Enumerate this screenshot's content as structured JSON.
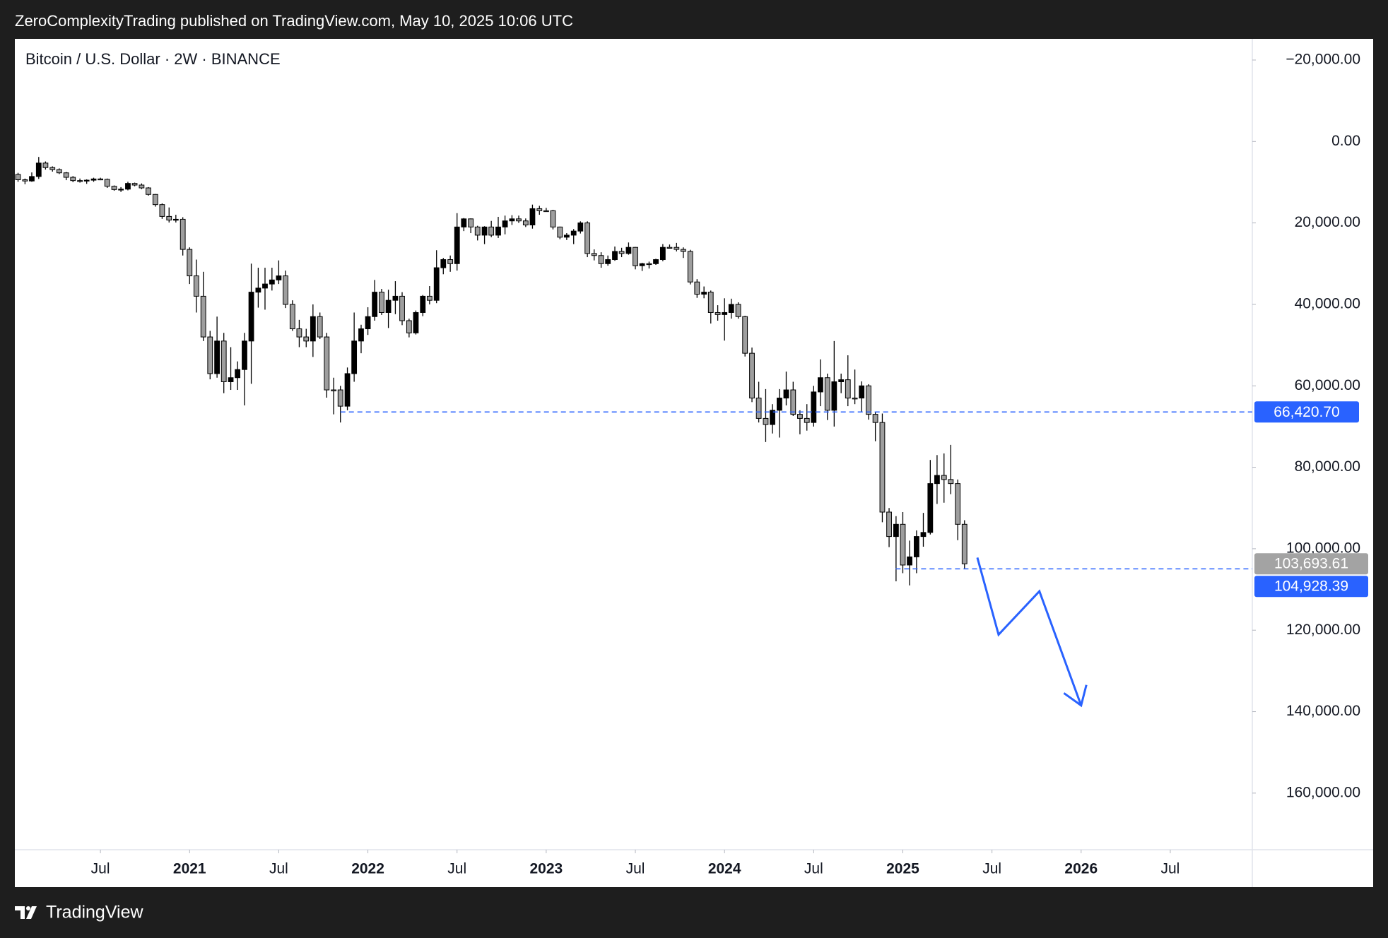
{
  "header": "ZeroComplexityTrading published on TradingView.com, May 10, 2025 10:06 UTC",
  "footer": "TradingView",
  "chart_data": {
    "type": "candlestick",
    "title": "Bitcoin / U.S. Dollar · 2W · BINANCE",
    "inverted": true,
    "up_color": "#9e9e9e",
    "down_color": "#000000",
    "xlim": [
      2020.02,
      2026.96
    ],
    "xticks": [
      {
        "value": 2020.5,
        "label": "Jul"
      },
      2021,
      {
        "value": 2021.5,
        "label": "Jul"
      },
      2022,
      {
        "value": 2022.5,
        "label": "Jul"
      },
      2023,
      {
        "value": 2023.5,
        "label": "Jul"
      },
      2024,
      {
        "value": 2024.5,
        "label": "Jul"
      },
      2025,
      {
        "value": 2025.5,
        "label": "Jul"
      },
      2026,
      {
        "value": 2026.5,
        "label": "Jul"
      }
    ],
    "ylim": [
      -25200,
      173900
    ],
    "yticks": [
      {
        "value": -20000,
        "label": "−20,000.00"
      },
      {
        "value": 0,
        "label": "0.00"
      },
      {
        "value": 20000,
        "label": "20,000.00"
      },
      {
        "value": 40000,
        "label": "40,000.00"
      },
      {
        "value": 60000,
        "label": "60,000.00"
      },
      {
        "value": 80000,
        "label": "80,000.00"
      },
      {
        "value": 100000,
        "label": "100,000.00"
      },
      {
        "value": 120000,
        "label": "120,000.00"
      },
      {
        "value": 140000,
        "label": "140,000.00"
      },
      {
        "value": 160000,
        "label": "160,000.00"
      }
    ],
    "x": [
      2020.038,
      2020.077,
      2020.115,
      2020.154,
      2020.192,
      2020.231,
      2020.269,
      2020.308,
      2020.346,
      2020.385,
      2020.423,
      2020.462,
      2020.5,
      2020.538,
      2020.577,
      2020.615,
      2020.654,
      2020.692,
      2020.731,
      2020.769,
      2020.808,
      2020.846,
      2020.885,
      2020.923,
      2020.962,
      2021,
      2021.038,
      2021.077,
      2021.115,
      2021.154,
      2021.192,
      2021.231,
      2021.269,
      2021.308,
      2021.346,
      2021.385,
      2021.423,
      2021.462,
      2021.5,
      2021.538,
      2021.577,
      2021.615,
      2021.654,
      2021.692,
      2021.731,
      2021.769,
      2021.808,
      2021.846,
      2021.885,
      2021.923,
      2021.962,
      2022,
      2022.038,
      2022.077,
      2022.115,
      2022.154,
      2022.192,
      2022.231,
      2022.269,
      2022.308,
      2022.346,
      2022.385,
      2022.423,
      2022.462,
      2022.5,
      2022.538,
      2022.577,
      2022.615,
      2022.654,
      2022.692,
      2022.731,
      2022.769,
      2022.808,
      2022.846,
      2022.885,
      2022.923,
      2022.962,
      2023,
      2023.038,
      2023.077,
      2023.115,
      2023.154,
      2023.192,
      2023.231,
      2023.269,
      2023.308,
      2023.346,
      2023.385,
      2023.423,
      2023.462,
      2023.5,
      2023.538,
      2023.577,
      2023.615,
      2023.654,
      2023.692,
      2023.731,
      2023.769,
      2023.808,
      2023.846,
      2023.885,
      2023.923,
      2023.962,
      2024,
      2024.038,
      2024.077,
      2024.115,
      2024.154,
      2024.192,
      2024.231,
      2024.269,
      2024.308,
      2024.346,
      2024.385,
      2024.423,
      2024.462,
      2024.5,
      2024.538,
      2024.577,
      2024.615,
      2024.654,
      2024.692,
      2024.731,
      2024.769,
      2024.808,
      2024.846,
      2024.885,
      2024.923,
      2024.962,
      2025,
      2025.038,
      2025.077,
      2025.115,
      2025.154,
      2025.192,
      2025.231,
      2025.269,
      2025.308,
      2025.346
    ],
    "open": [
      8100,
      9400,
      9700,
      8600,
      5300,
      6400,
      6900,
      7700,
      8800,
      9600,
      9700,
      9500,
      9200,
      9300,
      11000,
      11800,
      11700,
      10300,
      10700,
      11400,
      13000,
      15500,
      18400,
      19300,
      19100,
      26500,
      33000,
      38000,
      48000,
      57000,
      49000,
      59000,
      58000,
      56000,
      49000,
      37000,
      36000,
      35000,
      34000,
      33000,
      40000,
      46000,
      48000,
      49000,
      43000,
      48000,
      61000,
      61000,
      65000,
      57000,
      49000,
      46000,
      43000,
      37000,
      42000,
      39000,
      38000,
      44000,
      47000,
      42000,
      38000,
      39000,
      31000,
      29000,
      30000,
      21000,
      19000,
      21000,
      23000,
      21000,
      23000,
      21000,
      19500,
      19000,
      19500,
      20500,
      16500,
      17000,
      17000,
      21000,
      23500,
      23000,
      22000,
      20000,
      27500,
      28000,
      30000,
      29000,
      27000,
      27500,
      26000,
      30500,
      30000,
      30000,
      29000,
      26000,
      26000,
      26500,
      27000,
      34500,
      37500,
      37000,
      42000,
      42500,
      42000,
      40000,
      43000,
      52000,
      63000,
      68000,
      69500,
      66000,
      63000,
      61000,
      67000,
      68000,
      69000,
      61500,
      58000,
      66000,
      59000,
      58500,
      63000,
      63000,
      60000,
      67000,
      69000,
      91000,
      97000,
      94000,
      104000,
      102000,
      97000,
      96000,
      84000,
      82000,
      83000,
      84000,
      94000
    ],
    "high": [
      9900,
      10500,
      9900,
      9200,
      6900,
      7400,
      8000,
      9500,
      10000,
      10100,
      10400,
      9900,
      9500,
      11400,
      12100,
      12400,
      12000,
      11000,
      11700,
      13300,
      16000,
      19000,
      19900,
      19900,
      28000,
      35000,
      42000,
      49000,
      58400,
      58000,
      61800,
      61000,
      61000,
      64800,
      59500,
      40800,
      41300,
      36600,
      35000,
      40900,
      46500,
      50500,
      50500,
      52900,
      48500,
      62900,
      67000,
      69000,
      66000,
      59000,
      52000,
      47500,
      44000,
      42600,
      45800,
      42400,
      45100,
      48100,
      47400,
      42900,
      40000,
      39700,
      32600,
      32000,
      31700,
      22000,
      22500,
      24300,
      25200,
      23500,
      23700,
      22800,
      20500,
      20000,
      21000,
      21400,
      18000,
      17100,
      21600,
      24000,
      24200,
      25200,
      22600,
      28400,
      29200,
      31000,
      30500,
      29300,
      28400,
      27800,
      31400,
      31800,
      31200,
      30300,
      29400,
      26300,
      27000,
      28600,
      35100,
      38400,
      38500,
      44700,
      44000,
      48900,
      43500,
      43500,
      52800,
      64000,
      69000,
      73800,
      71700,
      72700,
      64800,
      67400,
      71900,
      71000,
      70000,
      65000,
      68400,
      70000,
      61800,
      65000,
      64500,
      66500,
      68300,
      73600,
      93500,
      99600,
      108000,
      106000,
      109000,
      106000,
      99500,
      96500,
      89000,
      88700,
      86600,
      97900,
      104900
    ],
    "low": [
      7700,
      9100,
      7600,
      3800,
      4900,
      6100,
      6600,
      7500,
      8500,
      9100,
      9300,
      8900,
      8900,
      9100,
      10800,
      11200,
      9900,
      10100,
      10300,
      11200,
      12900,
      15200,
      16200,
      18000,
      18600,
      26000,
      29000,
      32000,
      46500,
      43000,
      47000,
      50500,
      54000,
      47000,
      30000,
      31000,
      31000,
      31000,
      29200,
      31700,
      39000,
      43800,
      46000,
      40000,
      42000,
      47000,
      58000,
      60000,
      55500,
      42000,
      45000,
      40700,
      34000,
      36200,
      36400,
      34300,
      37000,
      43500,
      41500,
      37700,
      35500,
      26700,
      28600,
      28000,
      17600,
      18800,
      18900,
      20700,
      20800,
      19500,
      18500,
      18200,
      18100,
      18200,
      18900,
      15500,
      15800,
      16300,
      16800,
      20900,
      22500,
      21500,
      19600,
      19600,
      26500,
      27200,
      28000,
      25800,
      26100,
      24800,
      25900,
      29800,
      29500,
      28800,
      25200,
      25300,
      24900,
      26000,
      26600,
      33800,
      35600,
      36600,
      40200,
      38500,
      38600,
      39500,
      42800,
      50600,
      59000,
      60800,
      64500,
      60800,
      56500,
      59000,
      66000,
      64500,
      60000,
      53500,
      57000,
      49000,
      57000,
      52500,
      56000,
      58900,
      59600,
      66500,
      66800,
      90000,
      92000,
      91000,
      98000,
      95500,
      91200,
      78200,
      77000,
      76600,
      74500,
      83000,
      93000
    ],
    "close": [
      9400,
      9700,
      8600,
      5300,
      6400,
      6900,
      7700,
      8800,
      9600,
      9700,
      9500,
      9200,
      9300,
      11000,
      11800,
      11700,
      10300,
      10700,
      11400,
      13000,
      15500,
      18400,
      19300,
      19100,
      26500,
      33000,
      38000,
      48000,
      57000,
      49000,
      59000,
      58000,
      56000,
      49000,
      37000,
      36000,
      35000,
      34000,
      33000,
      40000,
      46000,
      48000,
      49000,
      43000,
      48000,
      61000,
      61000,
      65000,
      57000,
      49000,
      46000,
      43000,
      37000,
      42000,
      39000,
      38000,
      44000,
      47000,
      42000,
      38000,
      39000,
      31000,
      29000,
      30000,
      21000,
      19000,
      21000,
      23000,
      21000,
      23000,
      21000,
      19500,
      19000,
      19500,
      20500,
      16500,
      17000,
      17000,
      21000,
      23500,
      23000,
      22000,
      20000,
      27500,
      28000,
      30000,
      29000,
      27000,
      27500,
      26000,
      30500,
      30000,
      30000,
      29000,
      26000,
      26000,
      26500,
      27000,
      34500,
      37500,
      37000,
      42000,
      42500,
      42000,
      40000,
      43000,
      52000,
      63000,
      68000,
      69500,
      66000,
      63000,
      61000,
      67000,
      68000,
      69000,
      61500,
      58000,
      66000,
      59000,
      58500,
      63000,
      63000,
      60000,
      67000,
      69000,
      91000,
      97000,
      94000,
      104000,
      102000,
      97000,
      96000,
      84000,
      82000,
      83000,
      84000,
      94000,
      103693.61
    ],
    "price_lines": [
      {
        "value": 66420.7,
        "label": "66,420.70",
        "color": "#2962ff",
        "x_start": 2021.846
      },
      {
        "value": 104928.39,
        "label": "104,928.39",
        "color": "#2962ff",
        "x_start": 2024.96
      }
    ],
    "last_price": {
      "value": 103693.61,
      "label": "103,693.61",
      "color": "#a3a3a3"
    },
    "drawing": {
      "color": "#2962ff",
      "x": [
        2025.418,
        2025.537,
        2025.766,
        2026.0
      ],
      "y": [
        102174,
        121087,
        110435,
        138478
      ]
    }
  }
}
